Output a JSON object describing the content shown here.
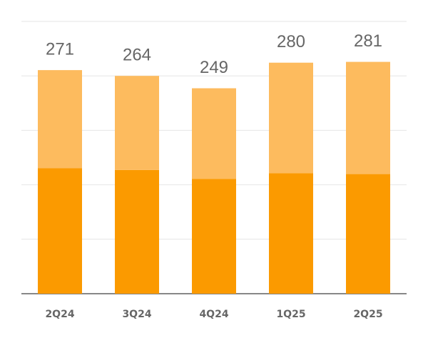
{
  "chart_data": {
    "type": "stacked_bar",
    "categories": [
      "2Q24",
      "3Q24",
      "4Q24",
      "1Q25",
      "2Q25"
    ],
    "series": [
      {
        "color": "#fb9a00",
        "values": [
          152,
          150,
          139,
          146,
          145
        ]
      },
      {
        "color": "#fdbb5e",
        "values": [
          119,
          114,
          110,
          134,
          136
        ]
      }
    ],
    "totals": [
      271,
      264,
      249,
      280,
      281
    ],
    "ylim": [
      0,
      330
    ],
    "yticks": [
      0,
      66,
      132,
      198,
      264,
      330
    ],
    "grid": true
  }
}
